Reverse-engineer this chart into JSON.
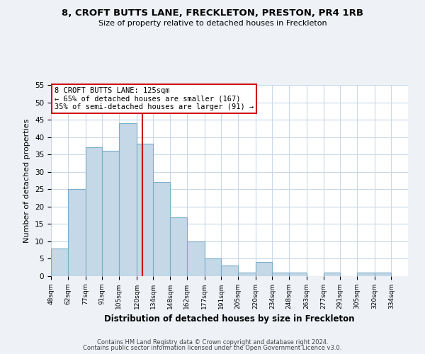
{
  "title": "8, CROFT BUTTS LANE, FRECKLETON, PRESTON, PR4 1RB",
  "subtitle": "Size of property relative to detached houses in Freckleton",
  "xlabel": "Distribution of detached houses by size in Freckleton",
  "ylabel": "Number of detached properties",
  "footer1": "Contains HM Land Registry data © Crown copyright and database right 2024.",
  "footer2": "Contains public sector information licensed under the Open Government Licence v3.0.",
  "bar_left_edges": [
    48,
    62,
    77,
    91,
    105,
    120,
    134,
    148,
    162,
    177,
    191,
    205,
    220,
    234,
    248,
    263,
    277,
    291,
    305,
    320
  ],
  "bar_heights": [
    8,
    25,
    37,
    36,
    44,
    38,
    27,
    17,
    10,
    5,
    3,
    1,
    4,
    1,
    1,
    0,
    1,
    0,
    1,
    1
  ],
  "bar_widths": [
    14,
    15,
    14,
    14,
    15,
    14,
    14,
    14,
    15,
    14,
    14,
    15,
    14,
    14,
    15,
    14,
    14,
    14,
    15,
    14
  ],
  "tick_labels": [
    "48sqm",
    "62sqm",
    "77sqm",
    "91sqm",
    "105sqm",
    "120sqm",
    "134sqm",
    "148sqm",
    "162sqm",
    "177sqm",
    "191sqm",
    "205sqm",
    "220sqm",
    "234sqm",
    "248sqm",
    "263sqm",
    "277sqm",
    "291sqm",
    "305sqm",
    "320sqm",
    "334sqm"
  ],
  "tick_positions": [
    48,
    62,
    77,
    91,
    105,
    120,
    134,
    148,
    162,
    177,
    191,
    205,
    220,
    234,
    248,
    263,
    277,
    291,
    305,
    320,
    334
  ],
  "bar_color": "#c5d8e8",
  "bar_edge_color": "#7aadc8",
  "vline_x": 125,
  "vline_color": "#cc0000",
  "annotation_title": "8 CROFT BUTTS LANE: 125sqm",
  "annotation_line1": "← 65% of detached houses are smaller (167)",
  "annotation_line2": "35% of semi-detached houses are larger (91) →",
  "annotation_box_color": "#cc0000",
  "annotation_bg_color": "#ffffff",
  "ylim": [
    0,
    55
  ],
  "yticks": [
    0,
    5,
    10,
    15,
    20,
    25,
    30,
    35,
    40,
    45,
    50,
    55
  ],
  "figsize": [
    6.0,
    5.0
  ],
  "dpi": 100,
  "bg_color": "#eef2f7",
  "plot_bg_color": "#ffffff",
  "grid_color": "#c8d8e8"
}
